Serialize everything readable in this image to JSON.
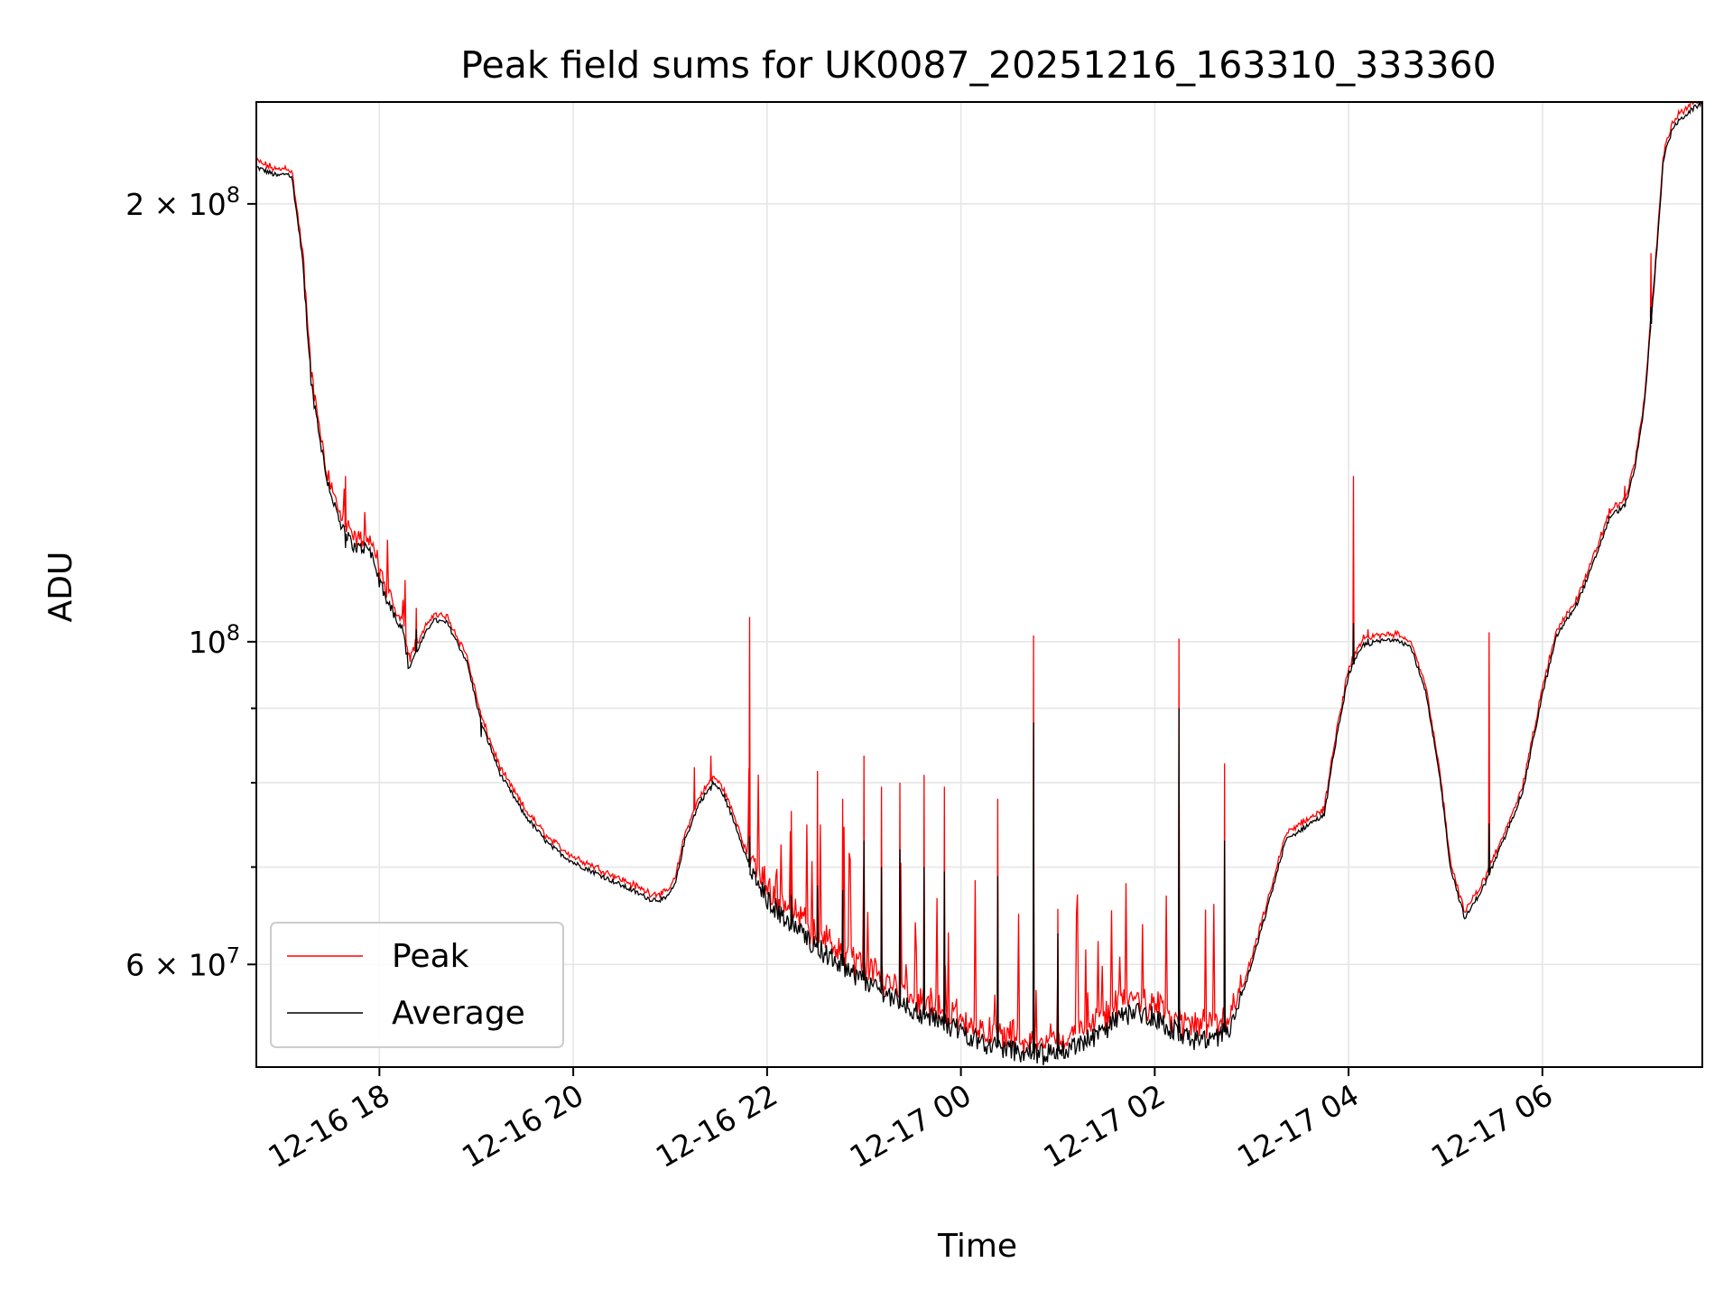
{
  "chart_data": {
    "type": "line",
    "title": "Peak field sums for UK0087_20251216_163310_333360",
    "xlabel": "Time",
    "ylabel": "ADU",
    "yscale": "log",
    "ylim": [
      51000000,
      235000000
    ],
    "xlim_hours": [
      16.73,
      31.65
    ],
    "grid": true,
    "legend_position": "lower-left",
    "x_ticks": [
      {
        "hour": 18,
        "label": "12-16 18"
      },
      {
        "hour": 20,
        "label": "12-16 20"
      },
      {
        "hour": 22,
        "label": "12-16 22"
      },
      {
        "hour": 24,
        "label": "12-17 00"
      },
      {
        "hour": 26,
        "label": "12-17 02"
      },
      {
        "hour": 28,
        "label": "12-17 04"
      },
      {
        "hour": 30,
        "label": "12-17 06"
      }
    ],
    "y_major_ticks": [
      {
        "value": 60000000,
        "mantissa": "6",
        "exponent": "7"
      },
      {
        "value": 100000000,
        "mantissa": "",
        "exponent": "8"
      },
      {
        "value": 200000000,
        "mantissa": "2",
        "exponent": "8"
      }
    ],
    "y_minor_grid": [
      70000000,
      80000000,
      90000000
    ],
    "baseline": [
      [
        16.73,
        212000000
      ],
      [
        16.95,
        209000000
      ],
      [
        17.05,
        210000000
      ],
      [
        17.1,
        208000000
      ],
      [
        17.2,
        185000000
      ],
      [
        17.3,
        150000000
      ],
      [
        17.45,
        130000000
      ],
      [
        17.6,
        120000000
      ],
      [
        17.75,
        116000000
      ],
      [
        17.9,
        116000000
      ],
      [
        18.0,
        110000000
      ],
      [
        18.1,
        106000000
      ],
      [
        18.25,
        102000000
      ],
      [
        18.3,
        96000000
      ],
      [
        18.4,
        99000000
      ],
      [
        18.55,
        103500000
      ],
      [
        18.7,
        103000000
      ],
      [
        18.9,
        97000000
      ],
      [
        19.05,
        88000000
      ],
      [
        19.25,
        81000000
      ],
      [
        19.5,
        76000000
      ],
      [
        19.75,
        72500000
      ],
      [
        20.0,
        70500000
      ],
      [
        20.3,
        69000000
      ],
      [
        20.6,
        67500000
      ],
      [
        20.8,
        66500000
      ],
      [
        20.95,
        66500000
      ],
      [
        21.05,
        68000000
      ],
      [
        21.15,
        73000000
      ],
      [
        21.3,
        77500000
      ],
      [
        21.45,
        80000000
      ],
      [
        21.55,
        78500000
      ],
      [
        21.7,
        74000000
      ],
      [
        21.85,
        69000000
      ],
      [
        22.0,
        66500000
      ],
      [
        22.3,
        63500000
      ],
      [
        22.6,
        61000000
      ],
      [
        23.0,
        58500000
      ],
      [
        23.3,
        57000000
      ],
      [
        23.6,
        55500000
      ],
      [
        24.0,
        54000000
      ],
      [
        24.3,
        52800000
      ],
      [
        24.6,
        52300000
      ],
      [
        24.85,
        52000000
      ],
      [
        25.1,
        52500000
      ],
      [
        25.4,
        53500000
      ],
      [
        25.6,
        55000000
      ],
      [
        25.8,
        55700000
      ],
      [
        26.0,
        55200000
      ],
      [
        26.15,
        54300000
      ],
      [
        26.4,
        53200000
      ],
      [
        26.6,
        53000000
      ],
      [
        26.8,
        54500000
      ],
      [
        27.0,
        60000000
      ],
      [
        27.2,
        67000000
      ],
      [
        27.35,
        73000000
      ],
      [
        27.6,
        75000000
      ],
      [
        27.75,
        76000000
      ],
      [
        27.85,
        84000000
      ],
      [
        28.0,
        95000000
      ],
      [
        28.15,
        99500000
      ],
      [
        28.3,
        100000000
      ],
      [
        28.5,
        100500000
      ],
      [
        28.65,
        99000000
      ],
      [
        28.8,
        92000000
      ],
      [
        28.95,
        80000000
      ],
      [
        29.05,
        70000000
      ],
      [
        29.2,
        64500000
      ],
      [
        29.4,
        68000000
      ],
      [
        29.6,
        73000000
      ],
      [
        29.8,
        79000000
      ],
      [
        30.0,
        92000000
      ],
      [
        30.15,
        101000000
      ],
      [
        30.35,
        106000000
      ],
      [
        30.5,
        112000000
      ],
      [
        30.7,
        122000000
      ],
      [
        30.85,
        124000000
      ],
      [
        30.95,
        131000000
      ],
      [
        31.05,
        145000000
      ],
      [
        31.15,
        175000000
      ],
      [
        31.25,
        215000000
      ],
      [
        31.35,
        226000000
      ],
      [
        31.5,
        231000000
      ],
      [
        31.65,
        235000000
      ]
    ],
    "spikes": [
      {
        "hour": 17.65,
        "peak": 130000000,
        "avg": 116000000
      },
      {
        "hour": 18.38,
        "peak": 105500000,
        "avg": 102000000
      },
      {
        "hour": 19.05,
        "peak": 89000000,
        "avg": 86000000
      },
      {
        "hour": 21.25,
        "peak": 82000000,
        "avg": 76000000
      },
      {
        "hour": 21.42,
        "peak": 83500000,
        "avg": 79000000
      },
      {
        "hour": 21.82,
        "peak": 104000000,
        "avg": 73500000
      },
      {
        "hour": 22.25,
        "peak": 76500000,
        "avg": 67000000
      },
      {
        "hour": 22.52,
        "peak": 81500000,
        "avg": 68000000
      },
      {
        "hour": 22.78,
        "peak": 78000000,
        "avg": 67500000
      },
      {
        "hour": 23.0,
        "peak": 83500000,
        "avg": 73000000
      },
      {
        "hour": 23.18,
        "peak": 79500000,
        "avg": 70000000
      },
      {
        "hour": 23.37,
        "peak": 80000000,
        "avg": 72000000
      },
      {
        "hour": 23.62,
        "peak": 81000000,
        "avg": 70000000
      },
      {
        "hour": 23.83,
        "peak": 79500000,
        "avg": 69500000
      },
      {
        "hour": 24.38,
        "peak": 78000000,
        "avg": 69000000
      },
      {
        "hour": 24.75,
        "peak": 101000000,
        "avg": 88000000
      },
      {
        "hour": 25.0,
        "peak": 65500000,
        "avg": 63000000
      },
      {
        "hour": 26.25,
        "peak": 100500000,
        "avg": 90000000
      },
      {
        "hour": 26.72,
        "peak": 82500000,
        "avg": 73000000
      },
      {
        "hour": 28.05,
        "peak": 130000000,
        "avg": 103000000
      },
      {
        "hour": 28.2,
        "peak": 102000000,
        "avg": 100500000
      },
      {
        "hour": 29.45,
        "peak": 101500000,
        "avg": 75000000
      },
      {
        "hour": 30.85,
        "peak": 128000000,
        "avg": 124000000
      },
      {
        "hour": 31.12,
        "peak": 185000000,
        "avg": 170000000
      }
    ],
    "series": [
      {
        "name": "Peak",
        "color": "#ff0000"
      },
      {
        "name": "Average",
        "color": "#000000"
      }
    ]
  }
}
